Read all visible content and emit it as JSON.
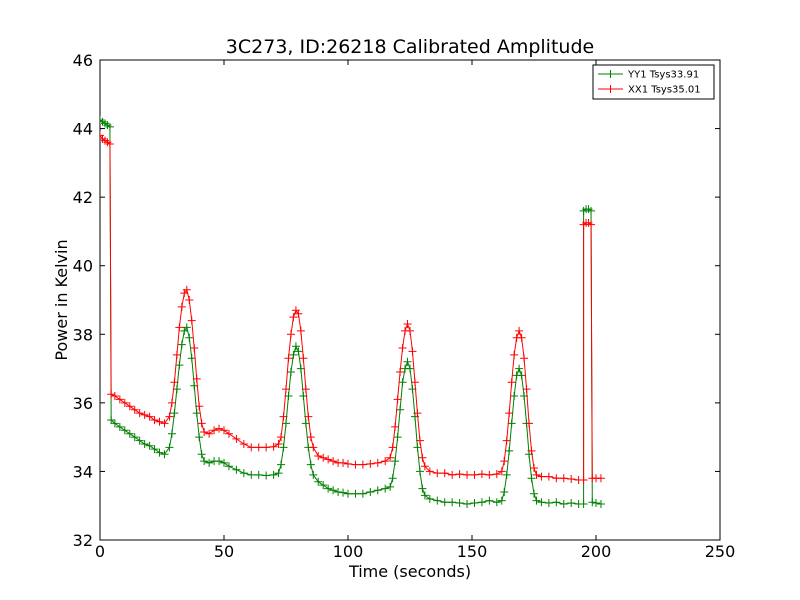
{
  "chart_data": {
    "type": "line",
    "title": "3C273, ID:26218 Calibrated Amplitude",
    "xlabel": "Time (seconds)",
    "ylabel": "Power in Kelvin",
    "xlim": [
      0,
      250
    ],
    "ylim": [
      32,
      46
    ],
    "xticks": [
      "0",
      "50",
      "100",
      "150",
      "200",
      "250"
    ],
    "yticks": [
      "32",
      "34",
      "36",
      "38",
      "40",
      "42",
      "44",
      "46"
    ],
    "grid": false,
    "legend_position": "top-right",
    "series": [
      {
        "name": "YY1 Tsys33.91",
        "color": "#008000",
        "marker": "+",
        "points": [
          [
            0,
            44.25
          ],
          [
            1,
            44.2
          ],
          [
            2,
            44.15
          ],
          [
            3,
            44.1
          ],
          [
            4,
            44.05
          ],
          [
            4.5,
            35.5
          ],
          [
            6,
            35.4
          ],
          [
            8,
            35.3
          ],
          [
            10,
            35.2
          ],
          [
            12,
            35.1
          ],
          [
            14,
            35.0
          ],
          [
            16,
            34.9
          ],
          [
            18,
            34.8
          ],
          [
            20,
            34.75
          ],
          [
            22,
            34.65
          ],
          [
            24,
            34.55
          ],
          [
            26,
            34.5
          ],
          [
            28,
            34.7
          ],
          [
            29,
            35.1
          ],
          [
            30,
            35.7
          ],
          [
            31,
            36.4
          ],
          [
            32,
            37.1
          ],
          [
            33,
            37.7
          ],
          [
            34,
            38.1
          ],
          [
            35,
            38.2
          ],
          [
            36,
            37.9
          ],
          [
            37,
            37.3
          ],
          [
            38,
            36.5
          ],
          [
            39,
            35.7
          ],
          [
            40,
            35.0
          ],
          [
            41,
            34.5
          ],
          [
            42,
            34.3
          ],
          [
            44,
            34.25
          ],
          [
            46,
            34.3
          ],
          [
            48,
            34.3
          ],
          [
            50,
            34.25
          ],
          [
            52,
            34.15
          ],
          [
            55,
            34.05
          ],
          [
            58,
            33.95
          ],
          [
            61,
            33.9
          ],
          [
            64,
            33.9
          ],
          [
            67,
            33.88
          ],
          [
            70,
            33.9
          ],
          [
            72,
            33.95
          ],
          [
            73,
            34.2
          ],
          [
            74,
            34.7
          ],
          [
            75,
            35.4
          ],
          [
            76,
            36.2
          ],
          [
            77,
            36.9
          ],
          [
            78,
            37.4
          ],
          [
            79,
            37.65
          ],
          [
            80,
            37.5
          ],
          [
            81,
            37.0
          ],
          [
            82,
            36.2
          ],
          [
            83,
            35.4
          ],
          [
            84,
            34.7
          ],
          [
            85,
            34.2
          ],
          [
            86,
            33.9
          ],
          [
            88,
            33.7
          ],
          [
            90,
            33.6
          ],
          [
            92,
            33.5
          ],
          [
            94,
            33.45
          ],
          [
            96,
            33.4
          ],
          [
            98,
            33.38
          ],
          [
            100,
            33.35
          ],
          [
            103,
            33.35
          ],
          [
            106,
            33.35
          ],
          [
            109,
            33.4
          ],
          [
            112,
            33.45
          ],
          [
            115,
            33.5
          ],
          [
            117,
            33.55
          ],
          [
            118,
            33.8
          ],
          [
            119,
            34.3
          ],
          [
            120,
            35.0
          ],
          [
            121,
            35.8
          ],
          [
            122,
            36.6
          ],
          [
            123,
            37.0
          ],
          [
            124,
            37.2
          ],
          [
            125,
            37.0
          ],
          [
            126,
            36.4
          ],
          [
            127,
            35.6
          ],
          [
            128,
            34.7
          ],
          [
            129,
            34.0
          ],
          [
            130,
            33.5
          ],
          [
            131,
            33.3
          ],
          [
            133,
            33.2
          ],
          [
            136,
            33.15
          ],
          [
            139,
            33.1
          ],
          [
            142,
            33.1
          ],
          [
            145,
            33.08
          ],
          [
            148,
            33.05
          ],
          [
            151,
            33.08
          ],
          [
            154,
            33.1
          ],
          [
            157,
            33.15
          ],
          [
            160,
            33.1
          ],
          [
            162,
            33.15
          ],
          [
            163,
            33.4
          ],
          [
            164,
            33.9
          ],
          [
            165,
            34.6
          ],
          [
            166,
            35.4
          ],
          [
            167,
            36.2
          ],
          [
            168,
            36.8
          ],
          [
            169,
            37.0
          ],
          [
            170,
            36.8
          ],
          [
            171,
            36.2
          ],
          [
            172,
            35.4
          ],
          [
            173,
            34.5
          ],
          [
            174,
            33.8
          ],
          [
            175,
            33.35
          ],
          [
            176,
            33.15
          ],
          [
            178,
            33.1
          ],
          [
            181,
            33.08
          ],
          [
            184,
            33.1
          ],
          [
            187,
            33.05
          ],
          [
            190,
            33.08
          ],
          [
            193,
            33.05
          ],
          [
            195,
            33.05
          ],
          [
            195,
            41.6
          ],
          [
            196,
            41.65
          ],
          [
            197,
            41.65
          ],
          [
            198,
            41.6
          ],
          [
            198.5,
            33.1
          ],
          [
            200,
            33.08
          ],
          [
            202,
            33.05
          ]
        ]
      },
      {
        "name": "XX1 Tsys35.01",
        "color": "#ff0000",
        "marker": "+",
        "points": [
          [
            0,
            43.8
          ],
          [
            1,
            43.7
          ],
          [
            2,
            43.65
          ],
          [
            3,
            43.6
          ],
          [
            4,
            43.55
          ],
          [
            4.5,
            36.25
          ],
          [
            6,
            36.2
          ],
          [
            8,
            36.1
          ],
          [
            10,
            36.0
          ],
          [
            12,
            35.9
          ],
          [
            14,
            35.8
          ],
          [
            16,
            35.7
          ],
          [
            18,
            35.65
          ],
          [
            20,
            35.6
          ],
          [
            22,
            35.5
          ],
          [
            24,
            35.45
          ],
          [
            26,
            35.4
          ],
          [
            28,
            35.6
          ],
          [
            29,
            36.0
          ],
          [
            30,
            36.6
          ],
          [
            31,
            37.4
          ],
          [
            32,
            38.2
          ],
          [
            33,
            38.8
          ],
          [
            34,
            39.2
          ],
          [
            35,
            39.3
          ],
          [
            36,
            39.0
          ],
          [
            37,
            38.4
          ],
          [
            38,
            37.6
          ],
          [
            39,
            36.7
          ],
          [
            40,
            35.9
          ],
          [
            41,
            35.4
          ],
          [
            42,
            35.15
          ],
          [
            44,
            35.1
          ],
          [
            46,
            35.2
          ],
          [
            48,
            35.25
          ],
          [
            50,
            35.2
          ],
          [
            52,
            35.1
          ],
          [
            55,
            34.95
          ],
          [
            58,
            34.8
          ],
          [
            61,
            34.7
          ],
          [
            64,
            34.7
          ],
          [
            67,
            34.7
          ],
          [
            70,
            34.72
          ],
          [
            72,
            34.8
          ],
          [
            73,
            35.0
          ],
          [
            74,
            35.6
          ],
          [
            75,
            36.4
          ],
          [
            76,
            37.3
          ],
          [
            77,
            38.0
          ],
          [
            78,
            38.5
          ],
          [
            79,
            38.7
          ],
          [
            80,
            38.6
          ],
          [
            81,
            38.1
          ],
          [
            82,
            37.3
          ],
          [
            83,
            36.4
          ],
          [
            84,
            35.6
          ],
          [
            85,
            35.0
          ],
          [
            86,
            34.7
          ],
          [
            88,
            34.45
          ],
          [
            90,
            34.4
          ],
          [
            92,
            34.35
          ],
          [
            94,
            34.3
          ],
          [
            96,
            34.25
          ],
          [
            98,
            34.25
          ],
          [
            100,
            34.22
          ],
          [
            103,
            34.2
          ],
          [
            106,
            34.2
          ],
          [
            109,
            34.22
          ],
          [
            112,
            34.25
          ],
          [
            115,
            34.3
          ],
          [
            117,
            34.4
          ],
          [
            118,
            34.7
          ],
          [
            119,
            35.3
          ],
          [
            120,
            36.1
          ],
          [
            121,
            36.9
          ],
          [
            122,
            37.6
          ],
          [
            123,
            38.1
          ],
          [
            124,
            38.3
          ],
          [
            125,
            38.1
          ],
          [
            126,
            37.5
          ],
          [
            127,
            36.6
          ],
          [
            128,
            35.7
          ],
          [
            129,
            34.9
          ],
          [
            130,
            34.4
          ],
          [
            131,
            34.15
          ],
          [
            133,
            34.0
          ],
          [
            136,
            33.95
          ],
          [
            139,
            33.95
          ],
          [
            142,
            33.9
          ],
          [
            145,
            33.92
          ],
          [
            148,
            33.9
          ],
          [
            151,
            33.9
          ],
          [
            154,
            33.92
          ],
          [
            157,
            33.9
          ],
          [
            160,
            33.92
          ],
          [
            162,
            34.0
          ],
          [
            163,
            34.3
          ],
          [
            164,
            34.9
          ],
          [
            165,
            35.7
          ],
          [
            166,
            36.6
          ],
          [
            167,
            37.4
          ],
          [
            168,
            37.9
          ],
          [
            169,
            38.1
          ],
          [
            170,
            37.9
          ],
          [
            171,
            37.3
          ],
          [
            172,
            36.4
          ],
          [
            173,
            35.4
          ],
          [
            174,
            34.6
          ],
          [
            175,
            34.1
          ],
          [
            176,
            33.9
          ],
          [
            178,
            33.85
          ],
          [
            181,
            33.85
          ],
          [
            184,
            33.8
          ],
          [
            187,
            33.8
          ],
          [
            190,
            33.78
          ],
          [
            193,
            33.75
          ],
          [
            195,
            33.75
          ],
          [
            195,
            41.2
          ],
          [
            196,
            41.25
          ],
          [
            197,
            41.25
          ],
          [
            198,
            41.2
          ],
          [
            198.5,
            33.8
          ],
          [
            200,
            33.8
          ],
          [
            202,
            33.8
          ]
        ]
      }
    ]
  }
}
